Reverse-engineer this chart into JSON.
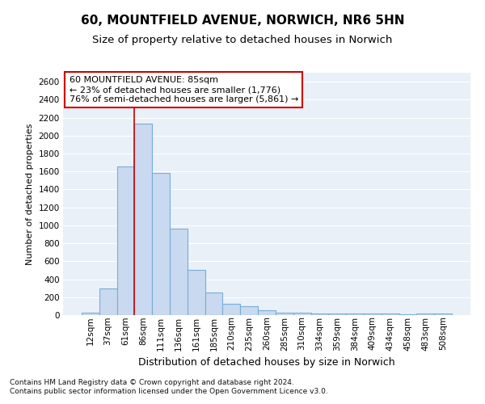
{
  "title_line1": "60, MOUNTFIELD AVENUE, NORWICH, NR6 5HN",
  "title_line2": "Size of property relative to detached houses in Norwich",
  "xlabel": "Distribution of detached houses by size in Norwich",
  "ylabel": "Number of detached properties",
  "footnote1": "Contains HM Land Registry data © Crown copyright and database right 2024.",
  "footnote2": "Contains public sector information licensed under the Open Government Licence v3.0.",
  "bar_labels": [
    "12sqm",
    "37sqm",
    "61sqm",
    "86sqm",
    "111sqm",
    "136sqm",
    "161sqm",
    "185sqm",
    "210sqm",
    "235sqm",
    "260sqm",
    "285sqm",
    "310sqm",
    "334sqm",
    "359sqm",
    "384sqm",
    "409sqm",
    "434sqm",
    "458sqm",
    "483sqm",
    "508sqm"
  ],
  "bar_values": [
    25,
    300,
    1660,
    2130,
    1585,
    960,
    505,
    250,
    125,
    100,
    50,
    30,
    30,
    20,
    20,
    20,
    20,
    20,
    10,
    20,
    20
  ],
  "bar_color": "#c9d9ef",
  "bar_edge_color": "#7aadd4",
  "vline_color": "#cc0000",
  "vline_x_index": 3,
  "annotation_line1": "60 MOUNTFIELD AVENUE: 85sqm",
  "annotation_line2": "← 23% of detached houses are smaller (1,776)",
  "annotation_line3": "76% of semi-detached houses are larger (5,861) →",
  "annotation_box_facecolor": "#ffffff",
  "annotation_box_edgecolor": "#cc0000",
  "ylim_max": 2700,
  "yticks": [
    0,
    200,
    400,
    600,
    800,
    1000,
    1200,
    1400,
    1600,
    1800,
    2000,
    2200,
    2400,
    2600
  ],
  "plot_bg_color": "#eaf0f8",
  "grid_color": "#ffffff",
  "fig_bg_color": "#ffffff",
  "title1_fontsize": 11,
  "title2_fontsize": 9.5,
  "xlabel_fontsize": 9,
  "ylabel_fontsize": 8,
  "tick_fontsize": 7.5,
  "footnote_fontsize": 6.5,
  "annotation_fontsize": 8
}
